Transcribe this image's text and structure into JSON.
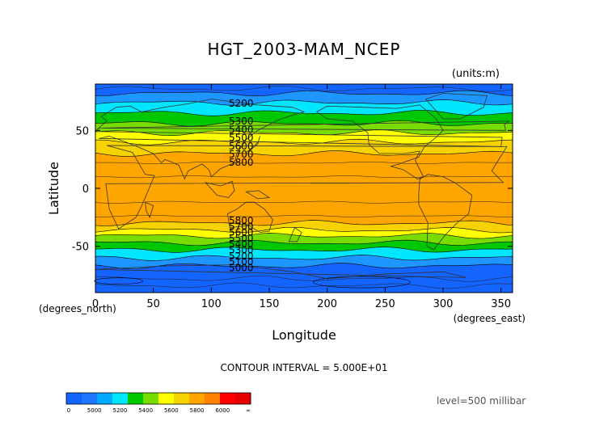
{
  "chart_data": {
    "type": "heatmap",
    "title": "HGT_2003-MAM_NCEP",
    "units_label": "(units:m)",
    "xlabel": "Longitude",
    "x_unit_label": "(degrees_east)",
    "ylabel": "Latitude",
    "y_unit_label": "(degrees_north)",
    "xlim": [
      0,
      360
    ],
    "ylim": [
      -90,
      90
    ],
    "x_ticks": [
      "0",
      "50",
      "100",
      "150",
      "200",
      "250",
      "300",
      "350"
    ],
    "y_ticks": [
      "50",
      "0",
      "-50"
    ],
    "contour_interval_text": "CONTOUR INTERVAL = 5.000E+01",
    "level_text": "level=500 millibar",
    "contour_labels_north": [
      "5200",
      "5300",
      "5400",
      "5500",
      "5600",
      "5700",
      "5800"
    ],
    "contour_labels_south": [
      "5800",
      "5700",
      "5600",
      "5500",
      "5400",
      "5300",
      "5200",
      "5100",
      "5000"
    ],
    "colorbar": {
      "labels": [
        "0",
        "5000",
        "5200",
        "5400",
        "5600",
        "5800",
        "6000",
        "∞"
      ],
      "colors": [
        "#1464ff",
        "#1e78ff",
        "#00aaff",
        "#00e6ff",
        "#00c800",
        "#78dc00",
        "#ffff00",
        "#f5d200",
        "#ffa500",
        "#ff8200",
        "#ff0000",
        "#e60000"
      ]
    },
    "bands": [
      {
        "from": 90,
        "to": 82,
        "color": "#1464ff"
      },
      {
        "from": 82,
        "to": 74,
        "color": "#1e96ff"
      },
      {
        "from": 74,
        "to": 65,
        "color": "#00e6ff"
      },
      {
        "from": 65,
        "to": 56,
        "color": "#00c800"
      },
      {
        "from": 56,
        "to": 48,
        "color": "#78dc00"
      },
      {
        "from": 48,
        "to": 40,
        "color": "#ffff00"
      },
      {
        "from": 40,
        "to": 30,
        "color": "#f5d200"
      },
      {
        "from": 30,
        "to": -30,
        "color": "#ffa500"
      },
      {
        "from": -30,
        "to": -36,
        "color": "#f5d200"
      },
      {
        "from": -36,
        "to": -41,
        "color": "#ffff00"
      },
      {
        "from": -41,
        "to": -47,
        "color": "#78dc00"
      },
      {
        "from": -47,
        "to": -53,
        "color": "#00c800"
      },
      {
        "from": -53,
        "to": -60,
        "color": "#00e6ff"
      },
      {
        "from": -60,
        "to": -67,
        "color": "#1e96ff"
      },
      {
        "from": -67,
        "to": -90,
        "color": "#1464ff"
      }
    ]
  }
}
